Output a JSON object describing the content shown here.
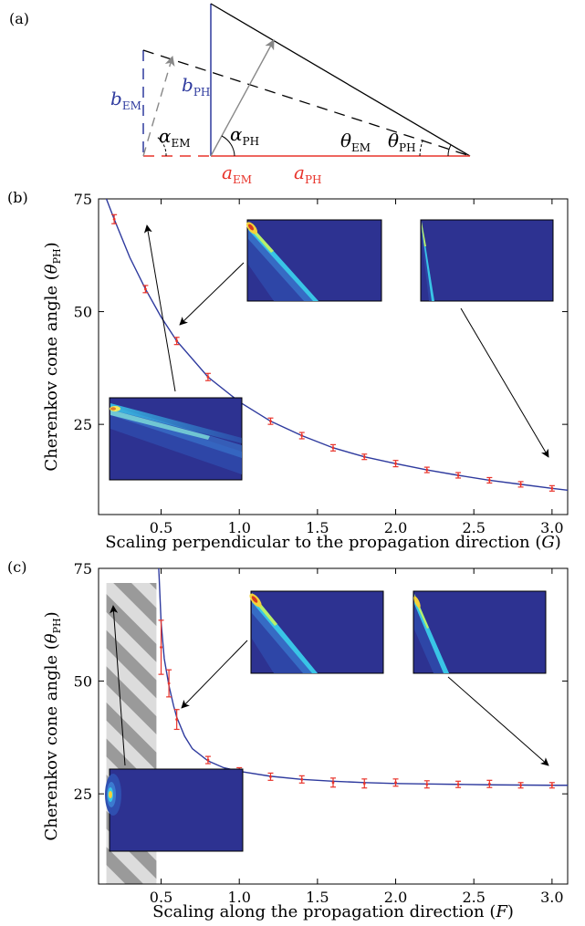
{
  "panels": {
    "a": {
      "label": "(a)"
    },
    "b": {
      "label": "(b)"
    },
    "c": {
      "label": "(c)"
    }
  },
  "diagram": {
    "b_em": {
      "main": "b",
      "sub": "EM"
    },
    "b_ph": {
      "main": "b",
      "sub": "PH"
    },
    "alpha_em": {
      "main": "α",
      "sub": "EM"
    },
    "alpha_ph": {
      "main": "α",
      "sub": "PH"
    },
    "theta_em": {
      "main": "θ",
      "sub": "EM"
    },
    "theta_ph": {
      "main": "θ",
      "sub": "PH"
    },
    "a_em": {
      "main": "a",
      "sub": "EM"
    },
    "a_ph": {
      "main": "a",
      "sub": "PH"
    },
    "colors": {
      "em": "#2e3a9e",
      "ph": "#e8332a",
      "arrow": "#888888"
    }
  },
  "chart_data": [
    {
      "type": "scatter",
      "panel": "b",
      "xlabel_main": "Scaling perpendicular to the propagation direction (",
      "xlabel_var": "G",
      "xlabel_end": ")",
      "ylabel_main": "Cherenkov cone angle (",
      "ylabel_var": "θ",
      "ylabel_sub": "PH",
      "ylabel_end": ")",
      "xlim": [
        0.1,
        3.1
      ],
      "ylim": [
        5,
        75
      ],
      "xticks": [
        "0.5",
        "1.0",
        "1.5",
        "2.0",
        "2.5",
        "3.0"
      ],
      "xtick_values": [
        0.5,
        1.0,
        1.5,
        2.0,
        2.5,
        3.0
      ],
      "yticks": [
        "25",
        "50",
        "75"
      ],
      "ytick_values": [
        25,
        50,
        75
      ],
      "series": [
        {
          "x": [
            0.2,
            0.4,
            0.6,
            0.8,
            1.0,
            1.2,
            1.4,
            1.6,
            1.8,
            2.0,
            2.2,
            2.4,
            2.6,
            2.8,
            3.0
          ],
          "y": [
            70.5,
            55.0,
            43.5,
            35.5,
            30.0,
            25.7,
            22.5,
            19.8,
            17.8,
            16.3,
            14.9,
            13.7,
            12.6,
            11.7,
            10.8
          ],
          "err": [
            1.0,
            0.8,
            0.8,
            0.8,
            0.8,
            0.7,
            0.7,
            0.7,
            0.6,
            0.7,
            0.6,
            0.6,
            0.6,
            0.6,
            0.6
          ]
        }
      ],
      "fit": {
        "x": [
          0.15,
          0.2,
          0.3,
          0.4,
          0.5,
          0.6,
          0.8,
          1.0,
          1.2,
          1.4,
          1.6,
          1.8,
          2.0,
          2.2,
          2.4,
          2.6,
          2.8,
          3.0,
          3.1
        ],
        "y": [
          75.0,
          70.5,
          62.0,
          55.0,
          48.8,
          43.5,
          35.5,
          30.0,
          25.7,
          22.5,
          19.8,
          17.8,
          16.3,
          14.9,
          13.7,
          12.6,
          11.7,
          10.8,
          10.4
        ]
      },
      "colors": {
        "fit": "#2e3a9e",
        "points": "#e8332a"
      }
    },
    {
      "type": "scatter",
      "panel": "c",
      "xlabel_main": "Scaling along the propagation direction (",
      "xlabel_var": "F",
      "xlabel_end": ")",
      "ylabel_main": "Cherenkov cone angle (",
      "ylabel_var": "θ",
      "ylabel_sub": "PH",
      "ylabel_end": ")",
      "xlim": [
        0.1,
        3.1
      ],
      "ylim": [
        5,
        75
      ],
      "xticks": [
        "0.5",
        "1.0",
        "1.5",
        "2.0",
        "2.5",
        "3.0"
      ],
      "xtick_values": [
        0.5,
        1.0,
        1.5,
        2.0,
        2.5,
        3.0
      ],
      "yticks": [
        "25",
        "50",
        "75"
      ],
      "ytick_values": [
        25,
        50,
        75
      ],
      "shaded_region_x": [
        0.15,
        0.47
      ],
      "series": [
        {
          "x": [
            0.5,
            0.55,
            0.6,
            0.8,
            1.0,
            1.2,
            1.4,
            1.6,
            1.8,
            2.0,
            2.2,
            2.4,
            2.6,
            2.8,
            3.0
          ],
          "y": [
            57.5,
            49.5,
            41.5,
            32.5,
            30.0,
            28.8,
            28.2,
            27.5,
            27.3,
            27.5,
            27.1,
            27.1,
            27.2,
            26.9,
            26.9
          ],
          "err": [
            6.0,
            3.0,
            2.2,
            0.8,
            0.8,
            0.8,
            0.8,
            1.0,
            1.0,
            0.8,
            0.8,
            0.7,
            0.8,
            0.6,
            0.6
          ]
        }
      ],
      "fit": {
        "x": [
          0.485,
          0.5,
          0.52,
          0.55,
          0.58,
          0.6,
          0.65,
          0.7,
          0.8,
          0.9,
          1.0,
          1.2,
          1.4,
          1.6,
          1.8,
          2.0,
          2.2,
          2.4,
          2.6,
          2.8,
          3.0,
          3.1
        ],
        "y": [
          75.0,
          63.0,
          55.0,
          49.0,
          44.5,
          42.0,
          37.8,
          35.0,
          32.3,
          30.8,
          30.0,
          28.9,
          28.2,
          27.8,
          27.5,
          27.3,
          27.2,
          27.1,
          27.0,
          26.95,
          26.9,
          26.9
        ]
      },
      "colors": {
        "fit": "#2e3a9e",
        "points": "#e8332a"
      }
    }
  ]
}
